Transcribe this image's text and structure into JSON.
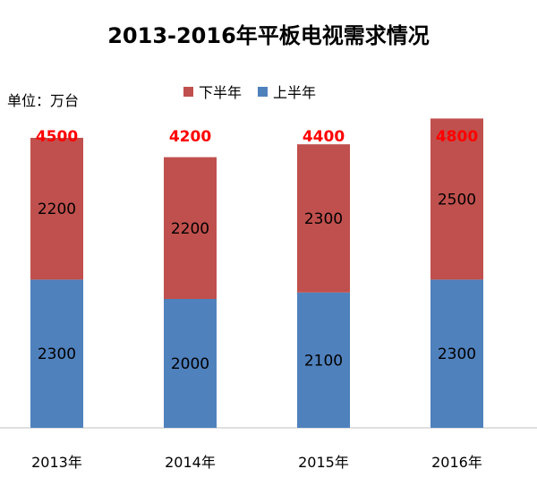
{
  "chart_data": {
    "type": "bar",
    "stacked": true,
    "title": "2013-2016年平板电视需求情况",
    "unit_label": "单位：万台",
    "categories": [
      "2013年",
      "2014年",
      "2015年",
      "2016年"
    ],
    "series": [
      {
        "name": "上半年",
        "color": "#4F81BD",
        "values": [
          2300,
          2000,
          2100,
          2300
        ]
      },
      {
        "name": "下半年",
        "color": "#C0504D",
        "values": [
          2200,
          2200,
          2300,
          2500
        ]
      }
    ],
    "totals": [
      "4500",
      "4200",
      "4400",
      "4800"
    ],
    "total_label_color": "#FF0000",
    "legend": {
      "placement": "top",
      "order": [
        "下半年",
        "上半年"
      ]
    },
    "ylim": [
      0,
      5000
    ],
    "grid": false
  }
}
